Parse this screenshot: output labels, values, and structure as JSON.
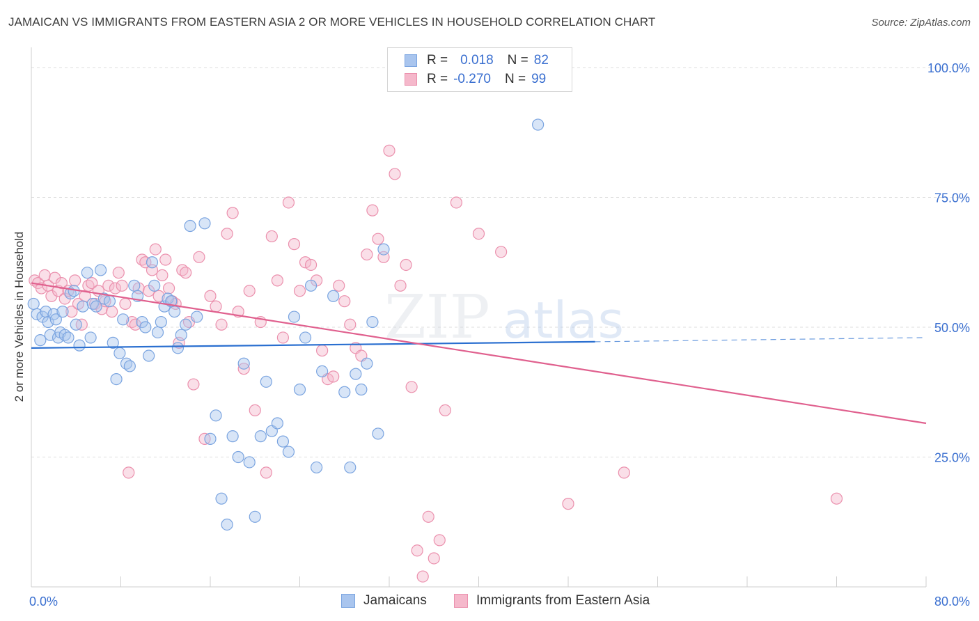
{
  "header": {
    "title": "JAMAICAN VS IMMIGRANTS FROM EASTERN ASIA 2 OR MORE VEHICLES IN HOUSEHOLD CORRELATION CHART",
    "source": "Source: ZipAtlas.com"
  },
  "watermark": {
    "zip": "ZIP",
    "atlas": "atlas"
  },
  "stats": {
    "rows": [
      {
        "r_label": "R =",
        "r_value": "0.018",
        "n_label": "N =",
        "n_value": "82"
      },
      {
        "r_label": "R =",
        "r_value": "-0.270",
        "n_label": "N =",
        "n_value": "99"
      }
    ]
  },
  "legend": {
    "items": [
      "Jamaicans",
      "Immigrants from Eastern Asia"
    ]
  },
  "colors": {
    "blue_fill": "#a9c5ee",
    "blue_stroke": "#7aa4e0",
    "blue_line": "#2a6fd0",
    "pink_fill": "#f5b8cb",
    "pink_stroke": "#eb90ad",
    "pink_line": "#e0608e",
    "tick_label": "#3a6fd0",
    "grid": "#dddddd"
  },
  "chart_data": {
    "type": "scatter",
    "title": "JAMAICAN VS IMMIGRANTS FROM EASTERN ASIA 2 OR MORE VEHICLES IN HOUSEHOLD CORRELATION CHART",
    "ylabel": "2 or more Vehicles in Household",
    "xlabel": "",
    "xlim": [
      0,
      80
    ],
    "ylim": [
      0,
      100
    ],
    "x_tick_labels": [
      "0.0%",
      "80.0%"
    ],
    "y_tick_values": [
      25,
      50,
      75,
      100
    ],
    "y_tick_labels": [
      "25.0%",
      "50.0%",
      "75.0%",
      "100.0%"
    ],
    "grid": true,
    "legend_position": "bottom",
    "series": [
      {
        "name": "Jamaicans",
        "trend": {
          "x0": 0,
          "y0": 46.0,
          "x1": 50.4,
          "y1": 47.2,
          "dashed_to_x": 80,
          "dashed_to_y": 48.0
        },
        "points": [
          [
            0.2,
            54.5
          ],
          [
            0.5,
            52.5
          ],
          [
            0.8,
            47.5
          ],
          [
            1.0,
            52.0
          ],
          [
            1.3,
            53.0
          ],
          [
            1.5,
            51.0
          ],
          [
            1.7,
            48.5
          ],
          [
            2.0,
            52.5
          ],
          [
            2.2,
            51.5
          ],
          [
            2.4,
            48.0
          ],
          [
            2.6,
            49.0
          ],
          [
            2.8,
            53.0
          ],
          [
            3.0,
            48.5
          ],
          [
            3.3,
            48.0
          ],
          [
            3.5,
            56.5
          ],
          [
            3.8,
            57.0
          ],
          [
            4.0,
            50.5
          ],
          [
            4.3,
            46.5
          ],
          [
            4.6,
            54.0
          ],
          [
            5.0,
            60.5
          ],
          [
            5.3,
            48.0
          ],
          [
            5.5,
            54.5
          ],
          [
            5.8,
            54.0
          ],
          [
            6.2,
            61.0
          ],
          [
            6.5,
            55.5
          ],
          [
            7.0,
            55.0
          ],
          [
            7.3,
            47.0
          ],
          [
            7.6,
            40.0
          ],
          [
            7.9,
            45.0
          ],
          [
            8.2,
            51.5
          ],
          [
            8.5,
            43.0
          ],
          [
            8.8,
            42.5
          ],
          [
            9.2,
            58.0
          ],
          [
            9.5,
            56.0
          ],
          [
            9.9,
            51.0
          ],
          [
            10.2,
            50.0
          ],
          [
            10.5,
            44.5
          ],
          [
            10.8,
            62.5
          ],
          [
            11.0,
            58.0
          ],
          [
            11.3,
            49.0
          ],
          [
            11.6,
            51.0
          ],
          [
            11.9,
            54.0
          ],
          [
            12.2,
            55.5
          ],
          [
            12.5,
            55.0
          ],
          [
            12.8,
            53.0
          ],
          [
            13.1,
            46.0
          ],
          [
            13.4,
            48.5
          ],
          [
            13.8,
            50.5
          ],
          [
            14.2,
            69.5
          ],
          [
            14.8,
            52.0
          ],
          [
            15.5,
            70.0
          ],
          [
            16.0,
            28.5
          ],
          [
            16.5,
            33.0
          ],
          [
            17.0,
            17.0
          ],
          [
            17.5,
            12.0
          ],
          [
            18.0,
            29.0
          ],
          [
            18.5,
            25.0
          ],
          [
            19.0,
            43.0
          ],
          [
            19.5,
            24.0
          ],
          [
            20.0,
            13.5
          ],
          [
            20.5,
            29.0
          ],
          [
            21.0,
            39.5
          ],
          [
            21.5,
            30.0
          ],
          [
            22.0,
            31.5
          ],
          [
            22.5,
            28.0
          ],
          [
            23.0,
            26.0
          ],
          [
            23.5,
            52.0
          ],
          [
            24.0,
            38.0
          ],
          [
            24.5,
            48.0
          ],
          [
            25.0,
            58.0
          ],
          [
            25.5,
            23.0
          ],
          [
            26.0,
            41.5
          ],
          [
            27.0,
            56.0
          ],
          [
            28.0,
            37.5
          ],
          [
            28.5,
            23.0
          ],
          [
            29.0,
            41.0
          ],
          [
            29.5,
            38.0
          ],
          [
            30.0,
            43.0
          ],
          [
            30.5,
            51.0
          ],
          [
            31.0,
            29.5
          ],
          [
            31.5,
            65.0
          ],
          [
            45.3,
            89.0
          ]
        ]
      },
      {
        "name": "Immigrants from Eastern Asia",
        "trend": {
          "x0": 0,
          "y0": 58.5,
          "x1": 80,
          "y1": 31.5
        },
        "points": [
          [
            0.3,
            59.0
          ],
          [
            0.6,
            58.5
          ],
          [
            0.9,
            57.5
          ],
          [
            1.2,
            60.0
          ],
          [
            1.5,
            58.0
          ],
          [
            1.8,
            56.0
          ],
          [
            2.1,
            59.5
          ],
          [
            2.4,
            57.0
          ],
          [
            2.7,
            58.5
          ],
          [
            3.0,
            55.5
          ],
          [
            3.3,
            57.0
          ],
          [
            3.6,
            53.0
          ],
          [
            3.9,
            59.0
          ],
          [
            4.2,
            54.5
          ],
          [
            4.5,
            50.5
          ],
          [
            4.8,
            56.0
          ],
          [
            5.1,
            58.0
          ],
          [
            5.4,
            58.5
          ],
          [
            5.7,
            54.5
          ],
          [
            6.0,
            57.0
          ],
          [
            6.3,
            53.5
          ],
          [
            6.6,
            55.0
          ],
          [
            6.9,
            58.0
          ],
          [
            7.2,
            53.0
          ],
          [
            7.5,
            57.5
          ],
          [
            7.8,
            60.5
          ],
          [
            8.1,
            58.0
          ],
          [
            8.4,
            54.5
          ],
          [
            8.7,
            22.0
          ],
          [
            9.0,
            51.0
          ],
          [
            9.3,
            50.5
          ],
          [
            9.6,
            57.5
          ],
          [
            9.9,
            63.0
          ],
          [
            10.2,
            62.5
          ],
          [
            10.5,
            57.0
          ],
          [
            10.8,
            61.0
          ],
          [
            11.1,
            65.0
          ],
          [
            11.4,
            56.0
          ],
          [
            11.7,
            60.0
          ],
          [
            12.0,
            63.0
          ],
          [
            12.3,
            57.5
          ],
          [
            12.6,
            55.0
          ],
          [
            12.9,
            54.5
          ],
          [
            13.2,
            47.0
          ],
          [
            13.5,
            61.0
          ],
          [
            13.8,
            60.5
          ],
          [
            14.1,
            51.0
          ],
          [
            14.5,
            39.0
          ],
          [
            15.0,
            63.5
          ],
          [
            15.5,
            28.5
          ],
          [
            16.0,
            56.0
          ],
          [
            16.5,
            54.0
          ],
          [
            17.0,
            50.5
          ],
          [
            17.5,
            68.0
          ],
          [
            18.0,
            72.0
          ],
          [
            18.5,
            53.0
          ],
          [
            19.0,
            42.0
          ],
          [
            19.5,
            57.0
          ],
          [
            20.0,
            34.0
          ],
          [
            20.5,
            51.0
          ],
          [
            21.0,
            22.0
          ],
          [
            21.5,
            67.5
          ],
          [
            22.0,
            59.0
          ],
          [
            22.5,
            48.0
          ],
          [
            23.0,
            74.0
          ],
          [
            23.5,
            66.0
          ],
          [
            24.0,
            57.0
          ],
          [
            24.5,
            62.5
          ],
          [
            25.0,
            62.0
          ],
          [
            25.5,
            59.0
          ],
          [
            26.0,
            45.5
          ],
          [
            26.5,
            40.0
          ],
          [
            27.0,
            40.5
          ],
          [
            27.5,
            58.0
          ],
          [
            28.0,
            55.0
          ],
          [
            28.5,
            50.5
          ],
          [
            29.0,
            46.0
          ],
          [
            29.5,
            44.5
          ],
          [
            30.0,
            64.0
          ],
          [
            30.5,
            72.5
          ],
          [
            31.0,
            67.0
          ],
          [
            31.5,
            63.5
          ],
          [
            32.0,
            84.0
          ],
          [
            32.5,
            79.5
          ],
          [
            33.0,
            58.0
          ],
          [
            33.5,
            62.0
          ],
          [
            34.0,
            38.5
          ],
          [
            34.5,
            7.0
          ],
          [
            35.0,
            2.0
          ],
          [
            35.5,
            13.5
          ],
          [
            36.0,
            5.5
          ],
          [
            36.5,
            9.0
          ],
          [
            37.0,
            34.0
          ],
          [
            38.0,
            74.0
          ],
          [
            40.0,
            68.0
          ],
          [
            42.0,
            64.5
          ],
          [
            48.0,
            16.0
          ],
          [
            53.0,
            22.0
          ],
          [
            72.0,
            17.0
          ]
        ]
      }
    ]
  }
}
